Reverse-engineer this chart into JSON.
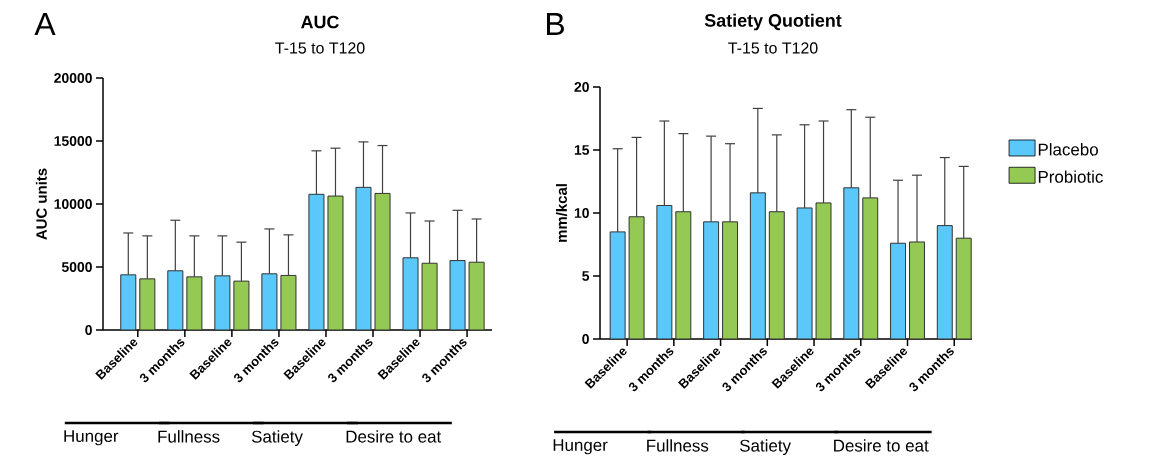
{
  "chart_data": [
    {
      "type": "bar",
      "title": "AUC",
      "subtitle": "T-15 to T120",
      "ylabel": "AUC units",
      "categories": [
        "Baseline",
        "3 months",
        "Baseline",
        "3 months",
        "Baseline",
        "3 months",
        "Baseline",
        "3 months"
      ],
      "series": [
        {
          "color": "#5bc8fb",
          "values": [
            4380,
            4700,
            4300,
            4460,
            10770,
            11320,
            5730,
            5510
          ],
          "errors": [
            3320,
            4010,
            3170,
            3560,
            3450,
            3610,
            3560,
            3990
          ]
        },
        {
          "color": "#94c954",
          "values": [
            4060,
            4220,
            3880,
            4330,
            10630,
            10840,
            5300,
            5380
          ],
          "errors": [
            3410,
            3250,
            3090,
            3220,
            3800,
            3800,
            3350,
            3430
          ]
        }
      ],
      "ylim": [
        0,
        20000
      ],
      "yticks": [
        0,
        5000,
        10000,
        15000,
        20000
      ],
      "grid": false,
      "annotations": [
        "A",
        "Hunger",
        "Fullness",
        "Satiety",
        "Desire to eat"
      ]
    },
    {
      "type": "bar",
      "title": "Satiety Quotient",
      "subtitle": "T-15 to T120",
      "ylabel": "mm/kcal",
      "categories": [
        "Baseline",
        "3 months",
        "Baseline",
        "3 months",
        "Baseline",
        "3 months",
        "Baseline",
        "3 months"
      ],
      "series": [
        {
          "name": "Placebo",
          "color": "#5bc8fb",
          "values": [
            8.5,
            10.6,
            9.3,
            11.6,
            10.4,
            12.0,
            7.6,
            9.0
          ],
          "errors": [
            6.6,
            6.7,
            6.8,
            6.7,
            6.6,
            6.2,
            5.0,
            5.4
          ]
        },
        {
          "name": "Probiotic",
          "color": "#94c954",
          "values": [
            9.7,
            10.1,
            9.3,
            10.1,
            10.8,
            11.2,
            7.7,
            8.0
          ],
          "errors": [
            6.3,
            6.2,
            6.2,
            6.1,
            6.5,
            6.4,
            5.3,
            5.7
          ]
        }
      ],
      "ylim": [
        0,
        20
      ],
      "yticks": [
        0,
        5,
        10,
        15,
        20
      ],
      "grid": false,
      "legend": "right",
      "annotations": [
        "B",
        "Hunger",
        "Fullness",
        "Satiety",
        "Desire to eat"
      ]
    }
  ]
}
